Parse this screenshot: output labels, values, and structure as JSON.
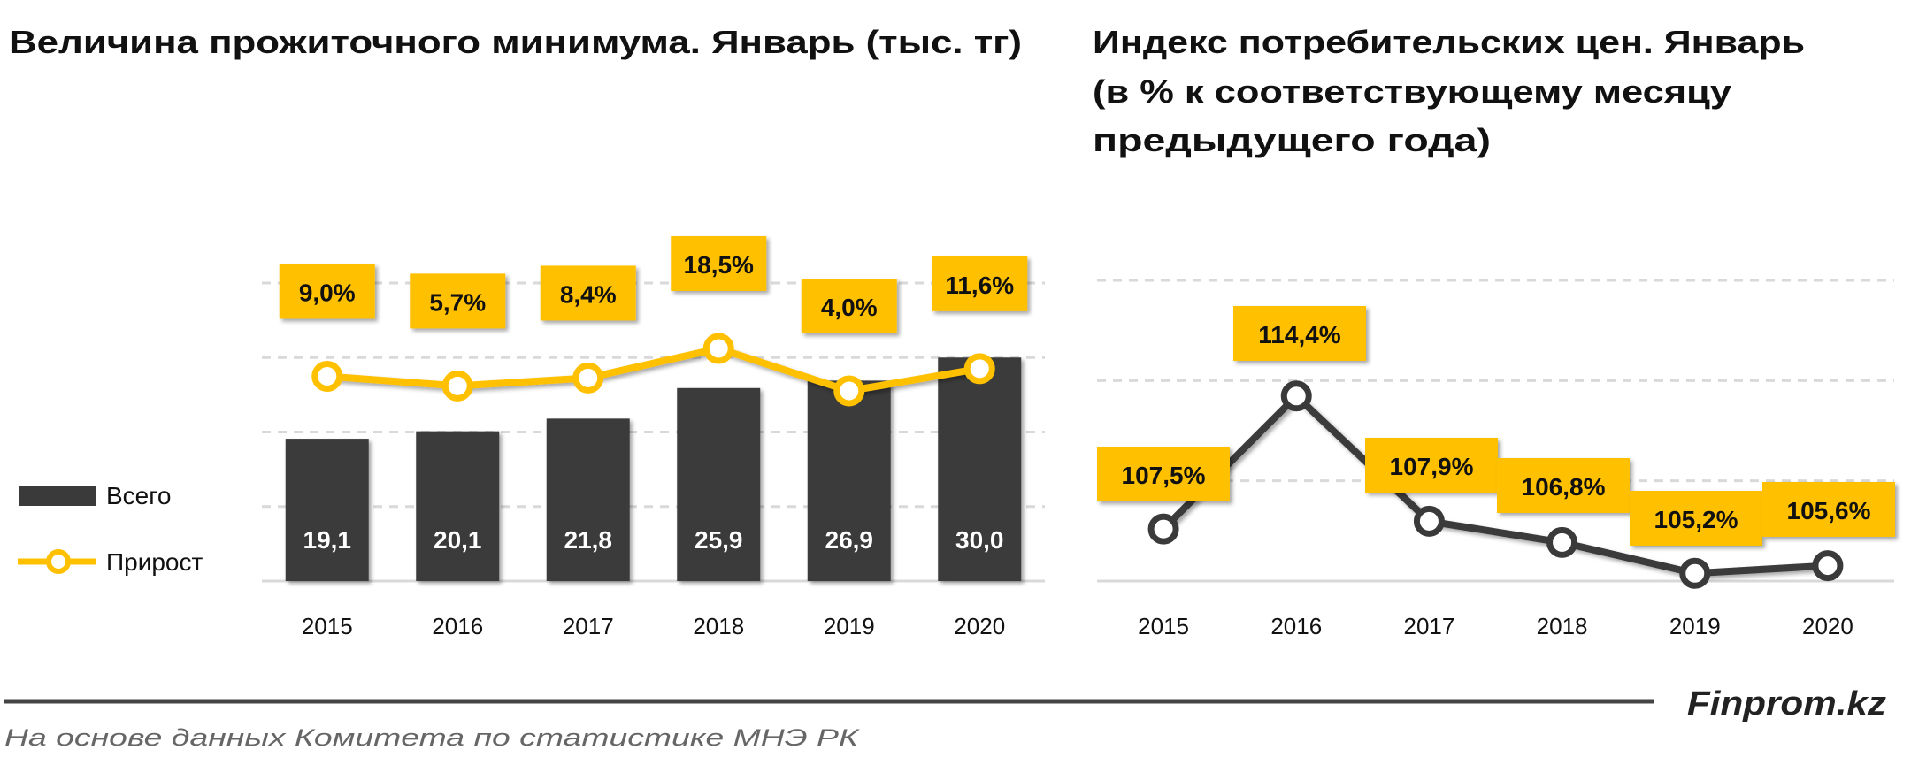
{
  "colors": {
    "bar": "#3a3a3a",
    "accent": "#ffc000",
    "line_dark": "#3a3a3a",
    "grid": "#d9d9d9"
  },
  "chart_data": [
    {
      "type": "bar",
      "title": "Величина прожиточного минимума. Январь (тыс. тг)",
      "categories": [
        "2015",
        "2016",
        "2017",
        "2018",
        "2019",
        "2020"
      ],
      "ylim": [
        0,
        40
      ],
      "grid": true,
      "legend_position": "left",
      "series": [
        {
          "name": "Всего",
          "type": "bar",
          "values": [
            19.1,
            20.1,
            21.8,
            25.9,
            26.9,
            30.0
          ],
          "labels": [
            "19,1",
            "20,1",
            "21,8",
            "25,9",
            "26,9",
            "30,0"
          ]
        },
        {
          "name": "Прирост",
          "type": "line",
          "axis": "secondary",
          "unit": "%",
          "values": [
            9.0,
            5.7,
            8.4,
            18.5,
            4.0,
            11.6
          ],
          "labels": [
            "9,0%",
            "5,7%",
            "8,4%",
            "18,5%",
            "4,0%",
            "11,6%"
          ]
        }
      ]
    },
    {
      "type": "line",
      "title": [
        "Индекс потребительских цен. Январь",
        "(в % к соответствующему месяцу",
        "предыдущего года)"
      ],
      "categories": [
        "2015",
        "2016",
        "2017",
        "2018",
        "2019",
        "2020"
      ],
      "ylim": [
        104.8,
        120.4
      ],
      "grid": true,
      "series": [
        {
          "values": [
            107.5,
            114.4,
            107.9,
            106.8,
            105.2,
            105.6
          ],
          "labels": [
            "107,5%",
            "114,4%",
            "107,9%",
            "106,8%",
            "105,2%",
            "105,6%"
          ]
        }
      ]
    }
  ],
  "footer": {
    "brand": "Finprom.kz",
    "source": "На основе данных  Комитета по статистике МНЭ РК"
  }
}
